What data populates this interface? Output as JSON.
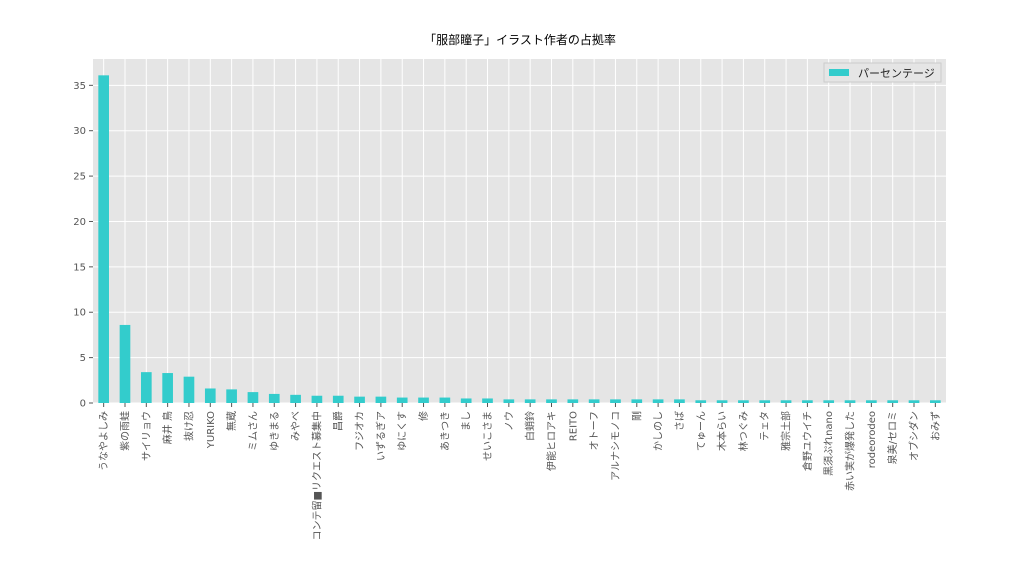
{
  "chart_data": {
    "type": "bar",
    "title": "「服部瞳子」イラスト作者の占拠率",
    "categories": [
      "うなやよしみ",
      "紫の雨蛙",
      "サイリョウ",
      "麻井 鳥",
      "抜け忍",
      "YURIKO",
      "無蔵",
      "ミムさん",
      "ゆきまる",
      "みやべ",
      "コンテ留■リクエスト募集中",
      "昌爵",
      "フジオカ",
      "いずるぎア",
      "ゆにくす",
      "修",
      "あきつき",
      "まし",
      "せいこさま",
      "ノウ",
      "白蛸鈴",
      "伊能ヒロアキ",
      "REITO",
      "オトーフ",
      "アルナシモノコ",
      "剛",
      "かしのし",
      "さば",
      "てゅーん",
      "木本らい",
      "林つぐみ",
      "テェタ",
      "雅宗土部",
      "倉野ユウイチ",
      "黒須ぷれnano",
      "赤い実が爆発した",
      "rodeorodeo",
      "泉美/セロミ",
      "オブシダン",
      "おみず"
    ],
    "series": [
      {
        "name": "パーセンテージ",
        "color": "#33cccc",
        "values": [
          36.1,
          8.6,
          3.4,
          3.3,
          2.9,
          1.6,
          1.5,
          1.2,
          1.0,
          0.9,
          0.8,
          0.8,
          0.7,
          0.7,
          0.6,
          0.6,
          0.6,
          0.5,
          0.5,
          0.4,
          0.4,
          0.4,
          0.4,
          0.4,
          0.4,
          0.4,
          0.4,
          0.4,
          0.3,
          0.3,
          0.3,
          0.3,
          0.3,
          0.3,
          0.3,
          0.3,
          0.3,
          0.3,
          0.3,
          0.3
        ]
      }
    ],
    "ylim": [
      0,
      37.9
    ],
    "yticks": [
      0,
      5,
      10,
      15,
      20,
      25,
      30,
      35
    ],
    "grid": true,
    "legend": "upper right"
  }
}
